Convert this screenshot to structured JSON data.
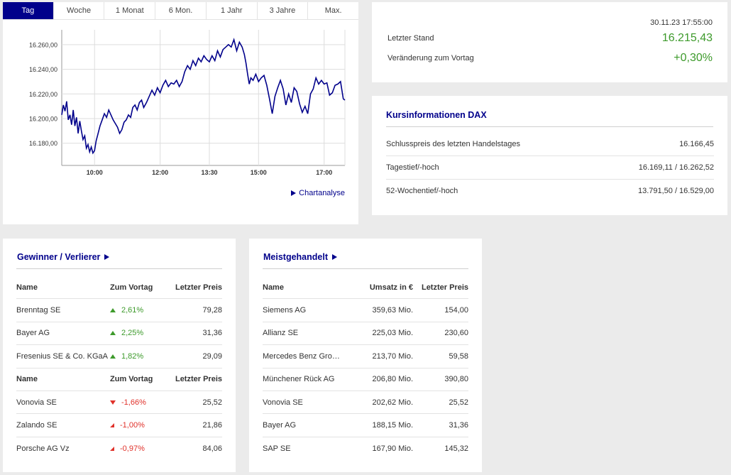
{
  "chart": {
    "tabs": [
      "Tag",
      "Woche",
      "1 Monat",
      "6 Mon.",
      "1 Jahr",
      "3 Jahre",
      "Max."
    ],
    "active_tab": 0,
    "link_label": "Chartanalyse",
    "line_color": "#00008b"
  },
  "chart_data": {
    "type": "line",
    "x_ticks": [
      "10:00",
      "12:00",
      "13:30",
      "15:00",
      "17:00"
    ],
    "y_ticks": [
      "16.260,00",
      "16.240,00",
      "16.220,00",
      "16.200,00",
      "16.180,00"
    ],
    "ylim": [
      16162,
      16272
    ],
    "xlim": [
      0,
      518
    ],
    "x_tick_positions": [
      60,
      180,
      270,
      360,
      480
    ],
    "series": [
      {
        "x": [
          0,
          3,
          6,
          9,
          12,
          15,
          18,
          21,
          24,
          27,
          30,
          33,
          36,
          39,
          42,
          45,
          48,
          51,
          54,
          57,
          60,
          63,
          66,
          70,
          74,
          78,
          82,
          86,
          90,
          94,
          98,
          102,
          106,
          110,
          114,
          118,
          122,
          126,
          130,
          134,
          138,
          142,
          146,
          150,
          155,
          160,
          165,
          170,
          175,
          180,
          185,
          190,
          195,
          200,
          205,
          210,
          215,
          220,
          225,
          230,
          235,
          240,
          245,
          250,
          255,
          260,
          265,
          270,
          275,
          280,
          285,
          290,
          295,
          300,
          305,
          310,
          315,
          320,
          325,
          330,
          334,
          337,
          340,
          343,
          346,
          350,
          355,
          360,
          365,
          370,
          375,
          380,
          385,
          390,
          395,
          400,
          405,
          410,
          415,
          420,
          425,
          430,
          435,
          440,
          445,
          450,
          455,
          460,
          465,
          470,
          475,
          480,
          485,
          490,
          495,
          500,
          505,
          510,
          515,
          518
        ],
        "y": [
          16203,
          16211,
          16206,
          16214,
          16199,
          16203,
          16195,
          16207,
          16194,
          16201,
          16188,
          16198,
          16190,
          16183,
          16186,
          16176,
          16179,
          16173,
          16177,
          16172,
          16174,
          16182,
          16187,
          16194,
          16199,
          16204,
          16201,
          16207,
          16203,
          16199,
          16196,
          16193,
          16188,
          16191,
          16197,
          16199,
          16203,
          16201,
          16209,
          16211,
          16207,
          16213,
          16215,
          16209,
          16213,
          16218,
          16223,
          16219,
          16225,
          16221,
          16227,
          16231,
          16226,
          16229,
          16228,
          16231,
          16226,
          16230,
          16238,
          16243,
          16240,
          16247,
          16243,
          16249,
          16246,
          16251,
          16248,
          16246,
          16251,
          16247,
          16255,
          16250,
          16256,
          16258,
          16260,
          16258,
          16264,
          16255,
          16262,
          16258,
          16252,
          16245,
          16236,
          16228,
          16233,
          16231,
          16236,
          16230,
          16233,
          16235,
          16227,
          16216,
          16204,
          16218,
          16225,
          16231,
          16224,
          16211,
          16220,
          16213,
          16225,
          16222,
          16212,
          16205,
          16210,
          16204,
          16220,
          16224,
          16233,
          16228,
          16231,
          16228,
          16229,
          16219,
          16221,
          16227,
          16228,
          16230,
          16216,
          16215
        ]
      }
    ]
  },
  "quote": {
    "timestamp": "30.11.23 17:55:00",
    "last_label": "Letzter Stand",
    "last_value": "16.215,43",
    "change_label": "Veränderung zum Vortag",
    "change_value": "+0,30%"
  },
  "info": {
    "title": "Kursinformationen DAX",
    "rows": [
      {
        "label": "Schlusspreis des letzten Handelstages",
        "value": "16.166,45"
      },
      {
        "label": "Tagestief/-hoch",
        "value": "16.169,11 / 16.262,52"
      },
      {
        "label": "52-Wochentief/-hoch",
        "value": "13.791,50 / 16.529,00"
      }
    ]
  },
  "gainers_losers": {
    "title": "Gewinner / Verlierer",
    "headers": {
      "name": "Name",
      "change": "Zum Vortag",
      "price": "Letzter Preis"
    },
    "gainers": [
      {
        "name": "Brenntag SE",
        "change": "2,61%",
        "price": "79,28"
      },
      {
        "name": "Bayer AG",
        "change": "2,25%",
        "price": "31,36"
      },
      {
        "name": "Fresenius SE & Co. KGaA",
        "change": "1,82%",
        "price": "29,09"
      }
    ],
    "losers": [
      {
        "name": "Vonovia SE",
        "change": "-1,66%",
        "price": "25,52"
      },
      {
        "name": "Zalando SE",
        "change": "-1,00%",
        "price": "21,86"
      },
      {
        "name": "Porsche AG Vz",
        "change": "-0,97%",
        "price": "84,06"
      }
    ]
  },
  "most_traded": {
    "title": "Meistgehandelt",
    "headers": {
      "name": "Name",
      "volume": "Umsatz in €",
      "price": "Letzter Preis"
    },
    "rows": [
      {
        "name": "Siemens AG",
        "volume": "359,63 Mio.",
        "price": "154,00"
      },
      {
        "name": "Allianz SE",
        "volume": "225,03 Mio.",
        "price": "230,60"
      },
      {
        "name": "Mercedes Benz Group AG ...",
        "volume": "213,70 Mio.",
        "price": "59,58"
      },
      {
        "name": "Münchener Rück AG",
        "volume": "206,80 Mio.",
        "price": "390,80"
      },
      {
        "name": "Vonovia SE",
        "volume": "202,62 Mio.",
        "price": "25,52"
      },
      {
        "name": "Bayer AG",
        "volume": "188,15 Mio.",
        "price": "31,36"
      },
      {
        "name": "SAP SE",
        "volume": "167,90 Mio.",
        "price": "145,32"
      }
    ]
  },
  "colors": {
    "accent": "#00008b",
    "positive": "#3d9a2b",
    "negative": "#e0312a"
  }
}
